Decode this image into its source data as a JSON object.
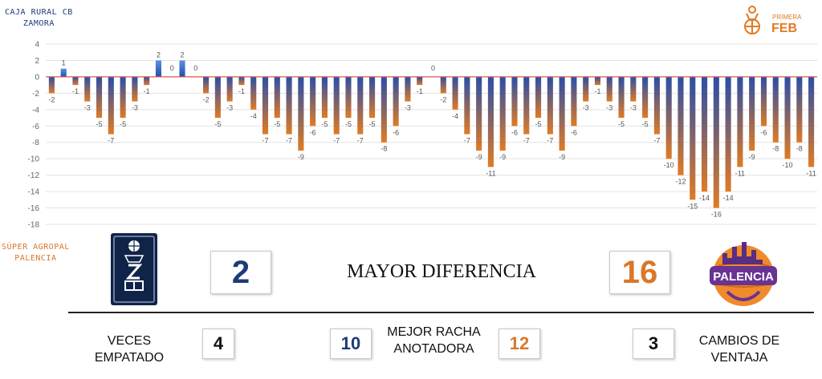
{
  "teams": {
    "top_label_line1": "CAJA RURAL CB",
    "top_label_line2": "ZAMORA",
    "bottom_label_line1": "SÚPER AGROPAL",
    "bottom_label_line2": "PALENCIA",
    "top_color": "#1f3a7a",
    "bottom_color": "#d9772a"
  },
  "logos": {
    "league_line1": "PRIMERA",
    "league_line2": "FEB",
    "palencia_text": "PALENCIA"
  },
  "stats": {
    "headline": "MAYOR DIFERENCIA",
    "max_diff_top": "2",
    "max_diff_bottom": "16",
    "ties_value": "4",
    "ties_label": "VECES EMPATADO",
    "run_label": "MEJOR RACHA ANOTADORA",
    "run_top": "10",
    "run_bottom": "12",
    "lead_changes_value": "3",
    "lead_changes_label": "CAMBIOS DE VENTAJA"
  },
  "chart_data": {
    "type": "bar",
    "title": "",
    "xlabel": "",
    "ylabel": "",
    "ylim": [
      -18,
      4
    ],
    "yticks": [
      4,
      2,
      0,
      -2,
      -4,
      -6,
      -8,
      -10,
      -12,
      -14,
      -16,
      -18
    ],
    "grid": true,
    "colors": {
      "positive": "#2a63c8",
      "negative_start": "#2a4ea8",
      "negative_end": "#e07b24",
      "zero_line": "#d9534f"
    },
    "series": [
      {
        "values": [
          -2,
          1,
          -1,
          -3,
          -5,
          -7,
          -5,
          -3,
          -1,
          2,
          0,
          2,
          0,
          -2,
          -5,
          -3,
          -1,
          -4,
          -7,
          -5,
          -7,
          -9,
          -6,
          -5,
          -7,
          -5,
          -7,
          -5,
          -8,
          -6,
          -3,
          -1,
          0,
          -2,
          -4,
          -7,
          -9,
          -11,
          -9,
          -6,
          -7,
          -5,
          -7,
          -9,
          -6,
          -3,
          -1,
          -3,
          -5,
          -3,
          -5,
          -7,
          -10,
          -12,
          -15,
          -14,
          -16,
          -14,
          -11,
          -9,
          -6,
          -8,
          -10,
          -8,
          -11
        ]
      }
    ]
  }
}
